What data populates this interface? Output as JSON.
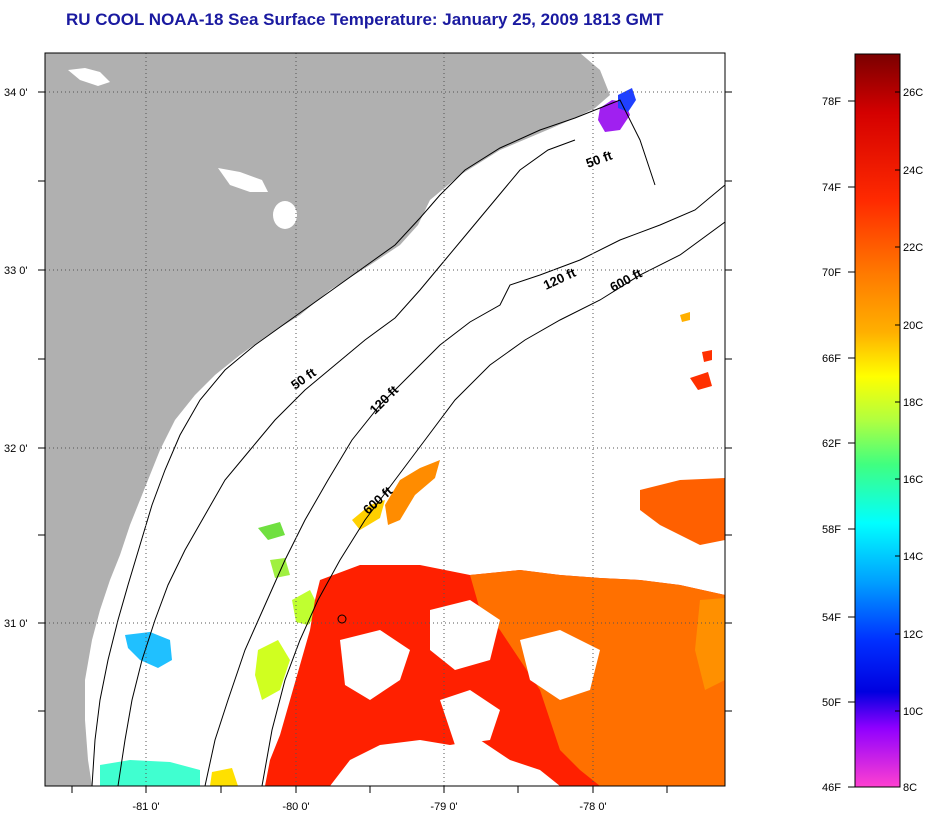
{
  "title": "RU COOL  NOAA-18  Sea Surface Temperature:  January 25, 2009 1813 GMT",
  "map": {
    "lat_ticks": [
      "34 0'",
      "33 0'",
      "32 0'",
      "31 0'"
    ],
    "lon_ticks": [
      "-81 0'",
      "-80 0'",
      "-79 0'",
      "-78 0'"
    ],
    "contour_labels": [
      "50 ft",
      "120 ft",
      "600 ft",
      "50 ft",
      "120 ft",
      "600 ft"
    ],
    "colors": {
      "land": "#b0b0b0",
      "ocean_clear": "#ffffff",
      "grid": "#555555"
    }
  },
  "colorbar": {
    "f_labels": [
      "78F",
      "74F",
      "70F",
      "66F",
      "62F",
      "58F",
      "54F",
      "50F",
      "46F"
    ],
    "c_labels": [
      "26C",
      "24C",
      "22C",
      "20C",
      "18C",
      "16C",
      "14C",
      "12C",
      "10C",
      "8C"
    ],
    "stops": [
      "#7a0000",
      "#d40000",
      "#ff2a00",
      "#ff7a00",
      "#ffb000",
      "#ffff00",
      "#b0ff40",
      "#40ff80",
      "#00ffff",
      "#00a0ff",
      "#0030ff",
      "#0000e0",
      "#9000ff",
      "#ff40d0"
    ]
  }
}
